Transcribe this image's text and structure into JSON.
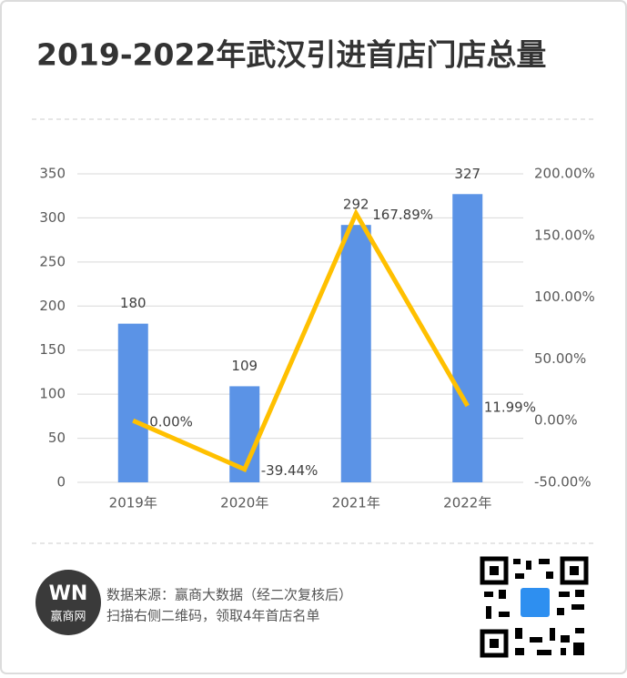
{
  "chart_data": {
    "type": "bar_line",
    "title": "2019-2022年武汉引进首店门店总量",
    "categories": [
      "2019年",
      "2020年",
      "2021年",
      "2022年"
    ],
    "series": [
      {
        "type": "bar",
        "color": "#5b93e6",
        "values": [
          180,
          109,
          292,
          327
        ]
      },
      {
        "type": "line",
        "axis": "y2",
        "color": "#ffc000",
        "values": [
          0,
          -39.44,
          167.89,
          11.99
        ],
        "value_labels": [
          "0.00%",
          "-39.44%",
          "167.89%",
          "11.99%"
        ]
      }
    ],
    "ylim": [
      0,
      350
    ],
    "yticks": [
      0,
      50,
      100,
      150,
      200,
      250,
      300,
      350
    ],
    "y2lim": [
      -50,
      200
    ],
    "y2ticks": [
      {
        "value": -50,
        "label": "-50.00%"
      },
      {
        "value": 0,
        "label": "0.00%"
      },
      {
        "value": 50,
        "label": "50.00%"
      },
      {
        "value": 100,
        "label": "100.00%"
      },
      {
        "value": 150,
        "label": "150.00%"
      },
      {
        "value": 200,
        "label": "200.00%"
      }
    ],
    "grid": true
  },
  "footer": {
    "logo": [
      "WN",
      "赢商网"
    ],
    "source": "数据来源：赢商大数据（经二次复核后）",
    "cta": "扫描右侧二维码，领取4年首店名单"
  }
}
